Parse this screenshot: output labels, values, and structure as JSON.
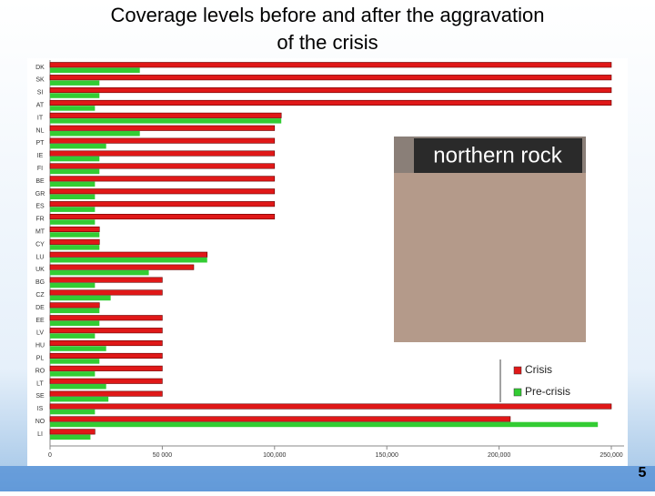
{
  "chart_data": {
    "type": "hbar",
    "title": "Coverage levels before and after the aggravation of the crisis",
    "categories": [
      "DK",
      "SK",
      "SI",
      "AT",
      "IT",
      "NL",
      "PT",
      "IE",
      "FI",
      "BE",
      "GR",
      "ES",
      "FR",
      "MT",
      "CY",
      "LU",
      "UK",
      "BG",
      "CZ",
      "DE",
      "EE",
      "LV",
      "HU",
      "PL",
      "RO",
      "LT",
      "SE",
      "IS",
      "NO",
      "LI"
    ],
    "series": [
      {
        "name": "Crisis",
        "color": "#e01818",
        "values": [
          250000,
          250000,
          250000,
          250000,
          103000,
          100000,
          100000,
          100000,
          100000,
          100000,
          100000,
          100000,
          100000,
          22000,
          22000,
          70000,
          64000,
          50000,
          50000,
          22000,
          50000,
          50000,
          50000,
          50000,
          50000,
          50000,
          50000,
          250000,
          205000,
          20000
        ]
      },
      {
        "name": "Pre-crisis",
        "color": "#33cc33",
        "values": [
          40000,
          22000,
          22000,
          20000,
          103000,
          40000,
          25000,
          22000,
          22000,
          20000,
          20000,
          20000,
          20000,
          22000,
          22000,
          70000,
          44000,
          20000,
          27000,
          22000,
          22000,
          20000,
          25000,
          22000,
          20000,
          25000,
          26000,
          20000,
          244000,
          18000
        ]
      }
    ],
    "xlim": [
      0,
      250000
    ],
    "xticks": [
      0,
      {
        "value": 50000,
        "label": "50 000"
      },
      {
        "value": 100000,
        "label": "100,000"
      },
      {
        "value": 150000,
        "label": "150,000"
      },
      {
        "value": 200000,
        "label": "200,000"
      },
      {
        "value": 250000,
        "label": "250,000"
      }
    ],
    "legend": "lower right"
  },
  "photo_caption": "northern rock",
  "page_number": "5"
}
